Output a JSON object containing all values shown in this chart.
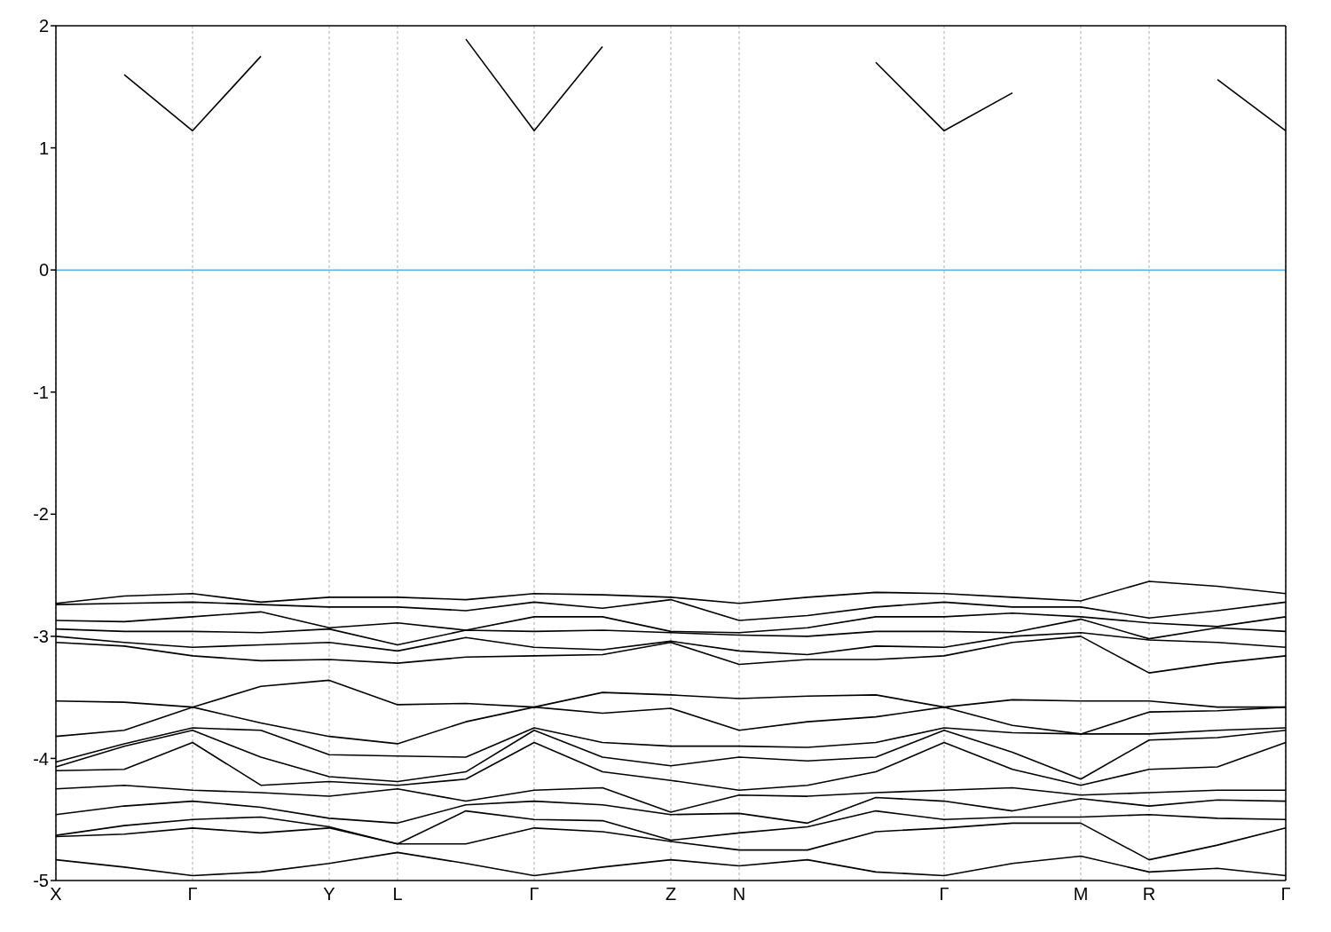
{
  "chart_data": {
    "type": "line",
    "categories": [
      "X",
      null,
      "Γ",
      null,
      "Y",
      "L",
      null,
      "Γ",
      null,
      "Z",
      "N",
      null,
      null,
      "Γ",
      null,
      "M",
      "R",
      null,
      "Γ"
    ],
    "series": [
      {
        "color": "#000000",
        "values": [
          null,
          1.6,
          1.14,
          1.75,
          null,
          null,
          1.89,
          1.14,
          1.83,
          null,
          null,
          null,
          1.7,
          1.14,
          1.45,
          null,
          null,
          1.56,
          1.14
        ]
      },
      {
        "color": "#000000",
        "values": [
          -2.73,
          -2.67,
          -2.65,
          -2.72,
          -2.68,
          -2.68,
          -2.7,
          -2.65,
          -2.66,
          -2.68,
          -2.73,
          -2.68,
          -2.64,
          -2.65,
          -2.68,
          -2.71,
          -2.55,
          -2.59,
          -2.65
        ]
      },
      {
        "color": "#000000",
        "values": [
          -2.74,
          -2.73,
          -2.72,
          -2.74,
          -2.76,
          -2.76,
          -2.79,
          -2.72,
          -2.77,
          -2.7,
          -2.87,
          -2.83,
          -2.76,
          -2.72,
          -2.76,
          -2.76,
          -2.85,
          -2.79,
          -2.72
        ]
      },
      {
        "color": "#000000",
        "values": [
          -2.87,
          -2.88,
          -2.84,
          -2.8,
          -2.93,
          -2.89,
          -2.95,
          -2.84,
          -2.84,
          -2.96,
          -2.97,
          -2.93,
          -2.84,
          -2.84,
          -2.81,
          -2.84,
          -2.89,
          -2.92,
          -2.84
        ]
      },
      {
        "color": "#000000",
        "values": [
          -2.94,
          -2.96,
          -2.96,
          -2.97,
          -2.94,
          -3.07,
          -2.95,
          -2.96,
          -2.95,
          -2.97,
          -2.99,
          -3,
          -2.96,
          -2.96,
          -2.97,
          -2.86,
          -3.02,
          -2.93,
          -2.96
        ]
      },
      {
        "color": "#000000",
        "values": [
          -3,
          -3.05,
          -3.09,
          -3.07,
          -3.05,
          -3.12,
          -3.01,
          -3.09,
          -3.11,
          -3.04,
          -3.12,
          -3.15,
          -3.08,
          -3.09,
          -3,
          -2.97,
          -3.03,
          -3.05,
          -3.09
        ]
      },
      {
        "color": "#000000",
        "values": [
          -3.05,
          -3.08,
          -3.16,
          -3.2,
          -3.19,
          -3.22,
          -3.17,
          -3.16,
          -3.15,
          -3.05,
          -3.23,
          -3.19,
          -3.19,
          -3.16,
          -3.05,
          -3,
          -3.3,
          -3.22,
          -3.16
        ]
      },
      {
        "color": "#000000",
        "values": [
          -3.53,
          -3.54,
          -3.58,
          -3.41,
          -3.36,
          -3.56,
          -3.55,
          -3.58,
          -3.46,
          -3.48,
          -3.51,
          -3.49,
          -3.48,
          -3.58,
          -3.52,
          -3.53,
          -3.53,
          -3.58,
          -3.58
        ]
      },
      {
        "color": "#000000",
        "values": [
          -3.82,
          -3.77,
          -3.58,
          -3.71,
          -3.82,
          -3.88,
          -3.7,
          -3.58,
          -3.63,
          -3.59,
          -3.77,
          -3.7,
          -3.66,
          -3.58,
          -3.73,
          -3.8,
          -3.62,
          -3.61,
          -3.58
        ]
      },
      {
        "color": "#000000",
        "values": [
          -4.03,
          -3.88,
          -3.75,
          -3.77,
          -3.97,
          -3.98,
          -3.99,
          -3.75,
          -3.87,
          -3.9,
          -3.9,
          -3.91,
          -3.87,
          -3.75,
          -3.79,
          -3.8,
          -3.8,
          -3.77,
          -3.75
        ]
      },
      {
        "color": "#000000",
        "values": [
          -4.07,
          -3.9,
          -3.77,
          -3.99,
          -4.15,
          -4.19,
          -4.11,
          -3.77,
          -3.99,
          -4.06,
          -3.99,
          -4.02,
          -3.99,
          -3.77,
          -3.95,
          -4.17,
          -3.85,
          -3.83,
          -3.77
        ]
      },
      {
        "color": "#000000",
        "values": [
          -4.1,
          -4.09,
          -3.87,
          -4.22,
          -4.19,
          -4.22,
          -4.17,
          -3.87,
          -4.11,
          -4.18,
          -4.26,
          -4.22,
          -4.11,
          -3.87,
          -4.09,
          -4.22,
          -4.09,
          -4.07,
          -3.87
        ]
      },
      {
        "color": "#000000",
        "values": [
          -4.25,
          -4.22,
          -4.26,
          -4.28,
          -4.31,
          -4.25,
          -4.35,
          -4.26,
          -4.24,
          -4.44,
          -4.3,
          -4.31,
          -4.28,
          -4.26,
          -4.24,
          -4.3,
          -4.28,
          -4.26,
          -4.26
        ]
      },
      {
        "color": "#000000",
        "values": [
          -4.46,
          -4.39,
          -4.35,
          -4.4,
          -4.49,
          -4.53,
          -4.38,
          -4.35,
          -4.38,
          -4.46,
          -4.45,
          -4.53,
          -4.32,
          -4.35,
          -4.43,
          -4.33,
          -4.39,
          -4.34,
          -4.35
        ]
      },
      {
        "color": "#000000",
        "values": [
          -4.63,
          -4.55,
          -4.5,
          -4.48,
          -4.56,
          -4.7,
          -4.43,
          -4.5,
          -4.51,
          -4.67,
          -4.61,
          -4.56,
          -4.43,
          -4.5,
          -4.48,
          -4.48,
          -4.46,
          -4.49,
          -4.5
        ]
      },
      {
        "color": "#000000",
        "values": [
          -4.64,
          -4.62,
          -4.57,
          -4.61,
          -4.57,
          -4.7,
          -4.7,
          -4.57,
          -4.6,
          -4.68,
          -4.75,
          -4.75,
          -4.6,
          -4.57,
          -4.53,
          -4.53,
          -4.83,
          -4.71,
          -4.57
        ]
      },
      {
        "color": "#000000",
        "values": [
          -4.83,
          -4.89,
          -4.96,
          -4.93,
          -4.86,
          -4.77,
          -4.86,
          -4.96,
          -4.89,
          -4.83,
          -4.88,
          -4.83,
          -4.93,
          -4.96,
          -4.86,
          -4.8,
          -4.93,
          -4.9,
          -4.96
        ]
      }
    ],
    "ylim": [
      -5,
      2
    ],
    "yticks": [
      -5,
      -4,
      -3,
      -2,
      -1,
      0,
      1,
      2
    ],
    "ref_lines": [
      {
        "axis": "y",
        "value": 0,
        "color": "#56b4e9",
        "line_style": "solid"
      }
    ],
    "grid": "x",
    "marker": "none",
    "line_style": "solid"
  }
}
